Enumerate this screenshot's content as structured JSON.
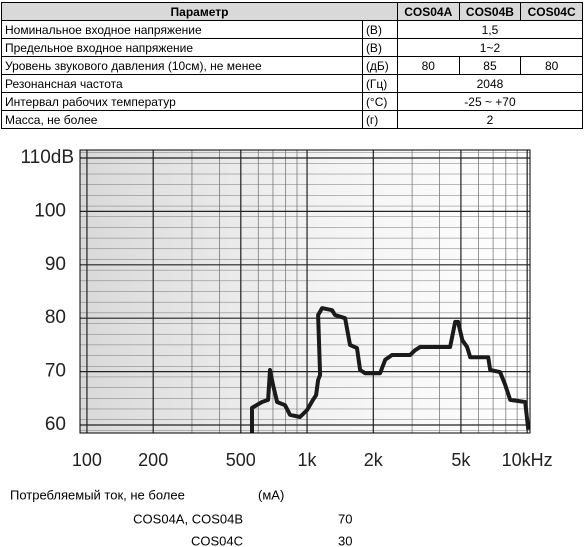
{
  "table": {
    "header": [
      "Параметр",
      "COS04A",
      "COS04B",
      "COS04C"
    ],
    "rows": [
      {
        "parameter": "Номинальное входное напряжение",
        "unit": "(В)",
        "values": [
          "1,5"
        ]
      },
      {
        "parameter": "Предельное входное напряжение",
        "unit": "(В)",
        "values": [
          "1~2"
        ]
      },
      {
        "parameter": "Уровень звукового давления (10см), не менее",
        "unit": "(дБ)",
        "values": [
          "80",
          "85",
          "80"
        ]
      },
      {
        "parameter": "Резонансная частота",
        "unit": "(Гц)",
        "values": [
          "2048"
        ]
      },
      {
        "parameter": "Интервал рабочих температур",
        "unit": "(°С)",
        "values": [
          "-25 ~ +70"
        ]
      },
      {
        "parameter": "Масса, не более",
        "unit": "(г)",
        "values": [
          "2"
        ]
      }
    ]
  },
  "chart_data": {
    "type": "line",
    "color": "#1a1a1a",
    "log_x": true,
    "grid": true,
    "xlim": [
      93,
      10300
    ],
    "ylim": [
      58.5,
      111.5
    ],
    "xticks": [
      100,
      200,
      500,
      {
        "value": 1000,
        "label": "1k"
      },
      {
        "value": 2000,
        "label": "2k"
      },
      {
        "value": 5000,
        "label": "5k"
      },
      {
        "value": 10000,
        "label": "10kHz"
      }
    ],
    "yticks": [
      60,
      70,
      80,
      90,
      100,
      {
        "value": 110,
        "label": "110dB"
      }
    ],
    "x": [
      562,
      562,
      624,
      665,
      679,
      700,
      731,
      794,
      837,
      929,
      1000,
      1064,
      1099,
      1122,
      1146,
      1122,
      1170,
      1300,
      1340,
      1489,
      1567,
      1687,
      1742,
      1836,
      2147,
      2264,
      2432,
      2938,
      3097,
      3265,
      4467,
      4709,
      4856,
      5071,
      5335,
      5508,
      6653,
      6792,
      7535,
      7943,
      8374,
      9793,
      10115
    ],
    "values": [
      58.5,
      63.2,
      64.3,
      64.7,
      70.3,
      67.5,
      64.3,
      63.7,
      61.9,
      61.5,
      62.8,
      64.7,
      65.6,
      68.4,
      69.4,
      80.6,
      81.9,
      81.5,
      80.6,
      80.0,
      75.0,
      74.4,
      70.3,
      69.7,
      69.7,
      72.2,
      73.1,
      73.1,
      74.0,
      74.6,
      74.6,
      79.3,
      79.3,
      75.9,
      74.6,
      72.7,
      72.7,
      70.3,
      69.9,
      67.5,
      64.7,
      64.3,
      59.1
    ]
  },
  "footer": {
    "title": "Потребляемый ток, не более",
    "unit": "(мА)",
    "rows": [
      [
        "COS04A, COS04B",
        "70"
      ],
      [
        "COS04C",
        "30"
      ]
    ]
  }
}
